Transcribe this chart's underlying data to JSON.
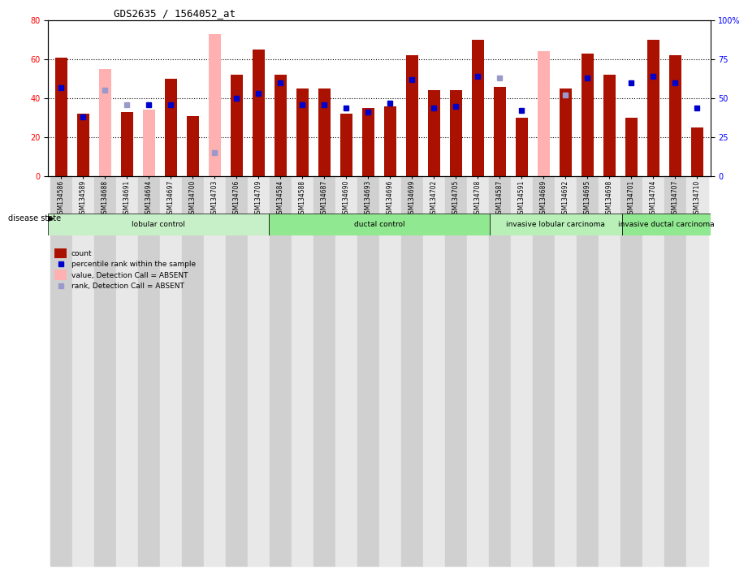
{
  "title": "GDS2635 / 1564052_at",
  "samples": [
    "GSM134586",
    "GSM134589",
    "GSM134688",
    "GSM134691",
    "GSM134694",
    "GSM134697",
    "GSM134700",
    "GSM134703",
    "GSM134706",
    "GSM134709",
    "GSM134584",
    "GSM134588",
    "GSM134687",
    "GSM134690",
    "GSM134693",
    "GSM134696",
    "GSM134699",
    "GSM134702",
    "GSM134705",
    "GSM134708",
    "GSM134587",
    "GSM134591",
    "GSM134689",
    "GSM134692",
    "GSM134695",
    "GSM134698",
    "GSM134701",
    "GSM134704",
    "GSM134707",
    "GSM134710"
  ],
  "count_values": [
    61,
    32,
    null,
    33,
    null,
    50,
    31,
    null,
    52,
    65,
    52,
    45,
    45,
    32,
    35,
    36,
    62,
    44,
    44,
    70,
    46,
    30,
    null,
    45,
    63,
    52,
    30,
    70,
    62,
    25
  ],
  "absent_value_values": [
    null,
    null,
    55,
    null,
    34,
    null,
    null,
    73,
    null,
    null,
    null,
    null,
    null,
    null,
    null,
    null,
    null,
    null,
    null,
    null,
    null,
    null,
    64,
    null,
    null,
    null,
    null,
    null,
    null,
    null
  ],
  "rank_values": [
    57,
    38,
    null,
    null,
    46,
    46,
    null,
    null,
    50,
    53,
    60,
    46,
    46,
    44,
    41,
    47,
    62,
    44,
    45,
    64,
    null,
    42,
    null,
    null,
    63,
    null,
    60,
    64,
    60,
    44
  ],
  "absent_rank_values": [
    null,
    null,
    55,
    46,
    null,
    null,
    null,
    15,
    null,
    null,
    null,
    null,
    null,
    null,
    null,
    null,
    null,
    null,
    null,
    null,
    63,
    null,
    null,
    52,
    null,
    null,
    null,
    null,
    null,
    null
  ],
  "groups": [
    {
      "label": "lobular control",
      "start": 0,
      "end": 10,
      "color": "#c8f0c8"
    },
    {
      "label": "ductal control",
      "start": 10,
      "end": 20,
      "color": "#90e890"
    },
    {
      "label": "invasive lobular carcinoma",
      "start": 20,
      "end": 26,
      "color": "#b8f0b8"
    },
    {
      "label": "invasive ductal carcinoma",
      "start": 26,
      "end": 30,
      "color": "#90e890"
    }
  ],
  "bar_color_present": "#aa1100",
  "bar_color_absent": "#ffb0b0",
  "dot_color_present": "#0000cc",
  "dot_color_absent": "#9999cc",
  "ylim_left": [
    0,
    80
  ],
  "ylim_right": [
    0,
    100
  ],
  "ylabel_left": "",
  "ylabel_right": "",
  "right_ticks": [
    0,
    25,
    50,
    75,
    100
  ],
  "right_tick_labels": [
    "0",
    "25",
    "50",
    "75",
    "100%"
  ],
  "left_ticks": [
    0,
    20,
    40,
    60,
    80
  ],
  "dotted_lines": [
    20,
    40,
    60
  ]
}
